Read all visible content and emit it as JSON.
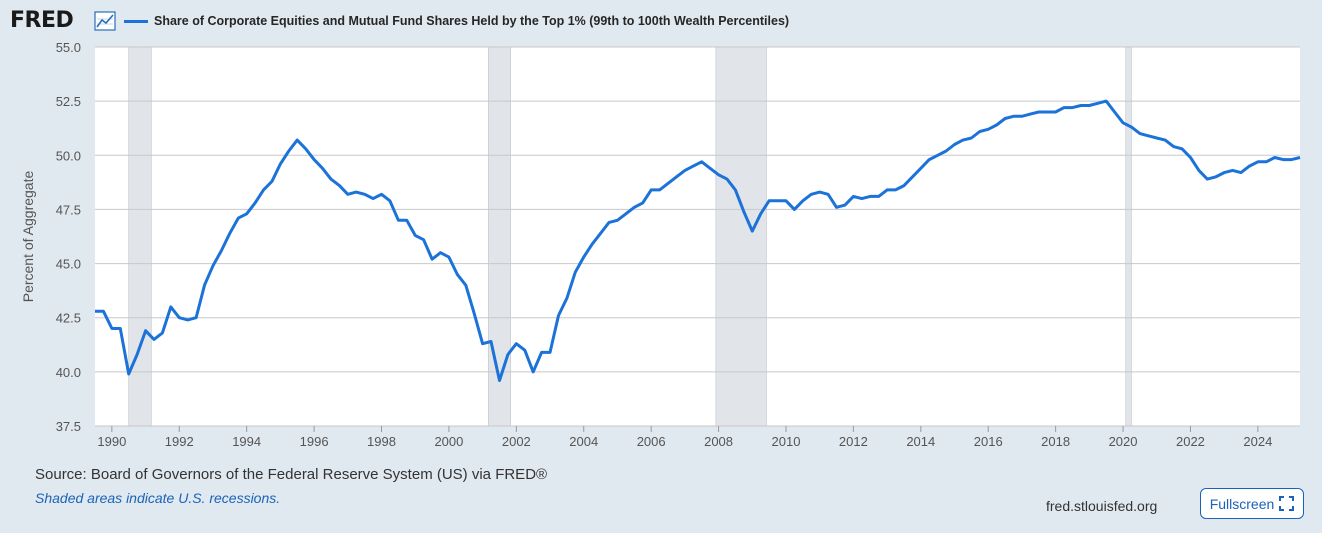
{
  "header": {
    "logo_text": "FRED",
    "logo_icon": "line-graph-icon",
    "legend_label": "Share of Corporate Equities and Mutual Fund Shares Held by the Top 1% (99th to 100th Wealth Percentiles)"
  },
  "footer": {
    "source": "Source: Board of Governors of the Federal Reserve System (US) via FRED®",
    "recession_note": "Shaded areas indicate U.S. recessions.",
    "site": "fred.stlouisfed.org",
    "fullscreen_label": "Fullscreen",
    "fullscreen_icon": "expand-icon"
  },
  "colors": {
    "line": "#1b72d8",
    "recession": "#e1e5ea",
    "grid": "#c8c8c8",
    "background": "#e1e9f0",
    "plot": "#ffffff"
  },
  "chart_data": {
    "type": "line",
    "title": "Share of Corporate Equities and Mutual Fund Shares Held by the Top 1% (99th to 100th Wealth Percentiles)",
    "xlabel": "",
    "ylabel": "Percent of Aggregate",
    "ylim": [
      37.5,
      55.0
    ],
    "xlim": [
      1989.5,
      2025.25
    ],
    "y_ticks": [
      "37.5",
      "40.0",
      "42.5",
      "45.0",
      "47.5",
      "50.0",
      "52.5",
      "55.0"
    ],
    "y_tick_values": [
      37.5,
      40.0,
      42.5,
      45.0,
      47.5,
      50.0,
      52.5,
      55.0
    ],
    "x_ticks": [
      "1990",
      "1992",
      "1994",
      "1996",
      "1998",
      "2000",
      "2002",
      "2004",
      "2006",
      "2008",
      "2010",
      "2012",
      "2014",
      "2016",
      "2018",
      "2020",
      "2022",
      "2024"
    ],
    "x_tick_values": [
      1990,
      1992,
      1994,
      1996,
      1998,
      2000,
      2002,
      2004,
      2006,
      2008,
      2010,
      2012,
      2014,
      2016,
      2018,
      2020,
      2022,
      2024
    ],
    "recessions": [
      [
        1990.5,
        1991.17
      ],
      [
        2001.17,
        2001.83
      ],
      [
        2007.92,
        2009.42
      ],
      [
        2020.08,
        2020.25
      ]
    ],
    "series": [
      {
        "name": "Share of Corporate Equities and Mutual Fund Shares Held by the Top 1% (99th to 100th Wealth Percentiles)",
        "x": [
          1989.5,
          1989.75,
          1990.0,
          1990.25,
          1990.5,
          1990.75,
          1991.0,
          1991.25,
          1991.5,
          1991.75,
          1992.0,
          1992.25,
          1992.5,
          1992.75,
          1993.0,
          1993.25,
          1993.5,
          1993.75,
          1994.0,
          1994.25,
          1994.5,
          1994.75,
          1995.0,
          1995.25,
          1995.5,
          1995.75,
          1996.0,
          1996.25,
          1996.5,
          1996.75,
          1997.0,
          1997.25,
          1997.5,
          1997.75,
          1998.0,
          1998.25,
          1998.5,
          1998.75,
          1999.0,
          1999.25,
          1999.5,
          1999.75,
          2000.0,
          2000.25,
          2000.5,
          2000.75,
          2001.0,
          2001.25,
          2001.5,
          2001.75,
          2002.0,
          2002.25,
          2002.5,
          2002.75,
          2003.0,
          2003.25,
          2003.5,
          2003.75,
          2004.0,
          2004.25,
          2004.5,
          2004.75,
          2005.0,
          2005.25,
          2005.5,
          2005.75,
          2006.0,
          2006.25,
          2006.5,
          2006.75,
          2007.0,
          2007.25,
          2007.5,
          2007.75,
          2008.0,
          2008.25,
          2008.5,
          2008.75,
          2009.0,
          2009.25,
          2009.5,
          2009.75,
          2010.0,
          2010.25,
          2010.5,
          2010.75,
          2011.0,
          2011.25,
          2011.5,
          2011.75,
          2012.0,
          2012.25,
          2012.5,
          2012.75,
          2013.0,
          2013.25,
          2013.5,
          2013.75,
          2014.0,
          2014.25,
          2014.5,
          2014.75,
          2015.0,
          2015.25,
          2015.5,
          2015.75,
          2016.0,
          2016.25,
          2016.5,
          2016.75,
          2017.0,
          2017.25,
          2017.5,
          2017.75,
          2018.0,
          2018.25,
          2018.5,
          2018.75,
          2019.0,
          2019.25,
          2019.5,
          2019.75,
          2020.0,
          2020.25,
          2020.5,
          2020.75,
          2021.0,
          2021.25,
          2021.5,
          2021.75,
          2022.0,
          2022.25,
          2022.5,
          2022.75,
          2023.0,
          2023.25,
          2023.5,
          2023.75,
          2024.0,
          2024.25,
          2024.5,
          2024.75,
          2025.0,
          2025.25
        ],
        "values": [
          42.8,
          42.8,
          42.0,
          42.0,
          39.9,
          40.8,
          41.9,
          41.5,
          41.8,
          43.0,
          42.5,
          42.4,
          42.5,
          44.0,
          44.9,
          45.6,
          46.4,
          47.1,
          47.3,
          47.8,
          48.4,
          48.8,
          49.6,
          50.2,
          50.7,
          50.3,
          49.8,
          49.4,
          48.9,
          48.6,
          48.2,
          48.3,
          48.2,
          48.0,
          48.2,
          47.9,
          47.0,
          47.0,
          46.3,
          46.1,
          45.2,
          45.5,
          45.3,
          44.5,
          44.0,
          42.7,
          41.3,
          41.4,
          39.6,
          40.8,
          41.3,
          41.0,
          40.0,
          40.9,
          40.9,
          42.6,
          43.4,
          44.6,
          45.3,
          45.9,
          46.4,
          46.9,
          47.0,
          47.3,
          47.6,
          47.8,
          48.4,
          48.4,
          48.7,
          49.0,
          49.3,
          49.5,
          49.7,
          49.4,
          49.1,
          48.9,
          48.4,
          47.4,
          46.5,
          47.3,
          47.9,
          47.9,
          47.9,
          47.5,
          47.9,
          48.2,
          48.3,
          48.2,
          47.6,
          47.7,
          48.1,
          48.0,
          48.1,
          48.1,
          48.4,
          48.4,
          48.6,
          49.0,
          49.4,
          49.8,
          50.0,
          50.2,
          50.5,
          50.7,
          50.8,
          51.1,
          51.2,
          51.4,
          51.7,
          51.8,
          51.8,
          51.9,
          52.0,
          52.0,
          52.0,
          52.2,
          52.2,
          52.3,
          52.3,
          52.4,
          52.5,
          52.0,
          51.5,
          51.3,
          51.0,
          50.9,
          50.8,
          50.7,
          50.4,
          50.3,
          49.9,
          49.3,
          48.9,
          49.0,
          49.2,
          49.3,
          49.2,
          49.5,
          49.7,
          49.7,
          49.9,
          49.8,
          49.8,
          49.9
        ]
      }
    ]
  }
}
